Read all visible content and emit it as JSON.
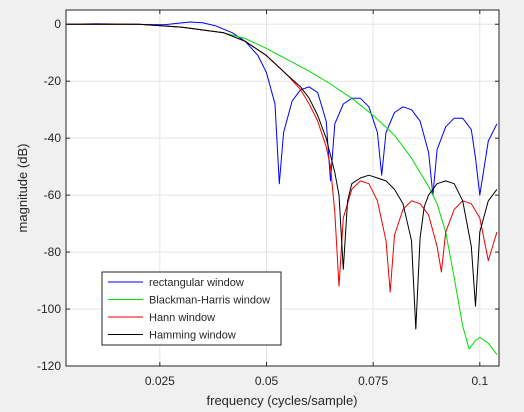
{
  "chart_data": {
    "type": "line",
    "xlabel": "frequency (cycles/sample)",
    "ylabel": "magnitude (dB)",
    "xlim": [
      0.003,
      0.1045
    ],
    "ylim": [
      -120,
      5
    ],
    "xticks": [
      0.025,
      0.05,
      0.075,
      0.1
    ],
    "xtick_labels": [
      "0.025",
      "0.05",
      "0.075",
      "0.1"
    ],
    "yticks": [
      0,
      -20,
      -40,
      -60,
      -80,
      -100,
      -120
    ],
    "ytick_labels": [
      "0",
      "-20",
      "-40",
      "-60",
      "-80",
      "-100",
      "-120"
    ],
    "grid": true,
    "legend_position": "bottom-left",
    "series": [
      {
        "name": "rectangular window",
        "color": "#0000ff",
        "x": [
          0.003,
          0.01,
          0.018,
          0.026,
          0.032,
          0.035,
          0.038,
          0.042,
          0.045,
          0.048,
          0.05,
          0.052,
          0.053,
          0.054,
          0.056,
          0.058,
          0.06,
          0.062,
          0.064,
          0.065,
          0.066,
          0.068,
          0.07,
          0.072,
          0.074,
          0.076,
          0.077,
          0.078,
          0.08,
          0.082,
          0.084,
          0.086,
          0.088,
          0.089,
          0.09,
          0.092,
          0.094,
          0.096,
          0.098,
          0.099,
          0.1,
          0.102,
          0.104
        ],
        "y": [
          0,
          0.2,
          0,
          -0.2,
          0.8,
          0.5,
          -0.5,
          -3,
          -6,
          -11,
          -17,
          -28,
          -56,
          -38,
          -27,
          -23,
          -22,
          -24,
          -34,
          -55,
          -35,
          -28,
          -26,
          -26,
          -29,
          -38,
          -53,
          -38,
          -31,
          -29,
          -30,
          -34,
          -45,
          -60,
          -44,
          -36,
          -33,
          -33,
          -37,
          -47,
          -60,
          -41,
          -35
        ]
      },
      {
        "name": "Blackman-Harris window",
        "color": "#00dd00",
        "x": [
          0.003,
          0.02,
          0.03,
          0.04,
          0.045,
          0.05,
          0.055,
          0.06,
          0.065,
          0.07,
          0.075,
          0.08,
          0.084,
          0.088,
          0.09,
          0.092,
          0.094,
          0.096,
          0.0975,
          0.099,
          0.1,
          0.102,
          0.104
        ],
        "y": [
          0,
          0,
          -1,
          -3,
          -5,
          -8.5,
          -12.5,
          -16.5,
          -21,
          -26,
          -32,
          -39,
          -47,
          -57,
          -63,
          -73,
          -89,
          -106,
          -114,
          -111,
          -110,
          -112,
          -116
        ]
      },
      {
        "name": "Hann window",
        "color": "#ee0000",
        "x": [
          0.003,
          0.02,
          0.03,
          0.04,
          0.045,
          0.05,
          0.055,
          0.058,
          0.06,
          0.062,
          0.064,
          0.065,
          0.066,
          0.067,
          0.068,
          0.07,
          0.072,
          0.074,
          0.076,
          0.078,
          0.079,
          0.08,
          0.082,
          0.084,
          0.086,
          0.088,
          0.09,
          0.091,
          0.092,
          0.094,
          0.096,
          0.098,
          0.1,
          0.102,
          0.104
        ],
        "y": [
          0,
          0,
          -1,
          -3,
          -6,
          -11,
          -18,
          -23,
          -28,
          -34,
          -43,
          -50,
          -66,
          -92,
          -68,
          -58,
          -55,
          -56,
          -62,
          -76,
          -94,
          -74,
          -65,
          -62,
          -63,
          -67,
          -78,
          -87,
          -73,
          -65,
          -62,
          -63,
          -68,
          -83,
          -73
        ]
      },
      {
        "name": "Hamming window",
        "color": "#000000",
        "x": [
          0.003,
          0.02,
          0.03,
          0.04,
          0.045,
          0.05,
          0.055,
          0.058,
          0.06,
          0.062,
          0.064,
          0.066,
          0.067,
          0.068,
          0.069,
          0.07,
          0.072,
          0.074,
          0.076,
          0.078,
          0.08,
          0.082,
          0.084,
          0.085,
          0.086,
          0.087,
          0.088,
          0.09,
          0.092,
          0.094,
          0.096,
          0.098,
          0.099,
          0.1,
          0.102,
          0.104
        ],
        "y": [
          0,
          0,
          -1,
          -3,
          -6,
          -11,
          -18,
          -22,
          -26,
          -32,
          -40,
          -52,
          -60,
          -86,
          -62,
          -56,
          -54,
          -53,
          -54,
          -55,
          -58,
          -63,
          -76,
          -107,
          -75,
          -64,
          -60,
          -56,
          -55,
          -56,
          -62,
          -78,
          -99,
          -73,
          -62,
          -58
        ]
      }
    ]
  }
}
